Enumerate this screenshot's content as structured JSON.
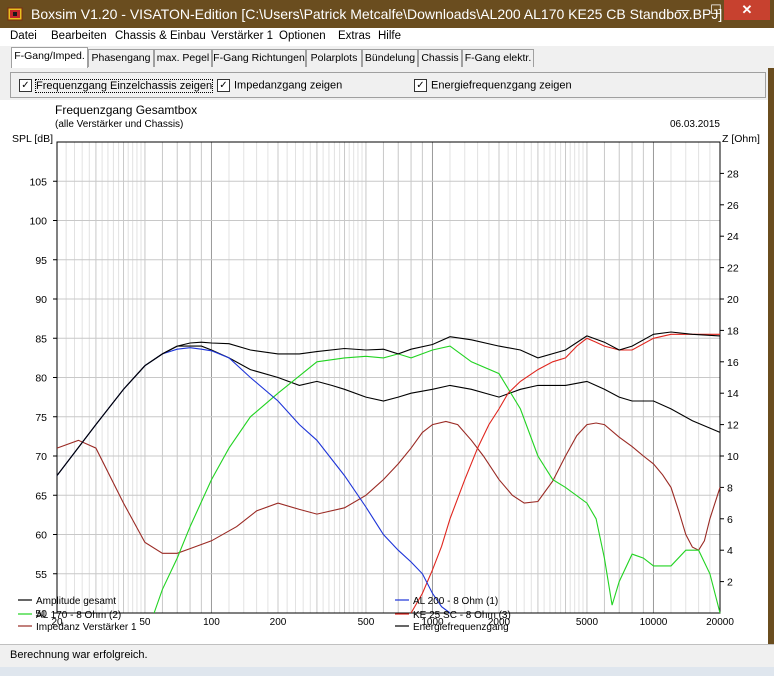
{
  "window": {
    "title": "Boxsim V1.20 - VISATON-Edition [C:\\Users\\Patrick Metcalfe\\Downloads\\AL200 AL170 KE25 CB Standbox.BPJ]",
    "minimize": "—",
    "maximize": "☐",
    "close": "✕"
  },
  "menu": [
    "Datei",
    "Bearbeiten",
    "Chassis & Einbau",
    "Verstärker 1",
    "Optionen",
    "Extras",
    "Hilfe"
  ],
  "tabs": [
    "F-Gang/Imped.",
    "Phasengang",
    "max. Pegel",
    "F-Gang Richtungen",
    "Polarplots",
    "Bündelung",
    "Chassis",
    "F-Gang elektr."
  ],
  "active_tab": "F-Gang/Imped.",
  "options": [
    {
      "label": "Frequenzgang Einzelchassis zeigen",
      "checked": true
    },
    {
      "label": "Impedanzgang zeigen",
      "checked": true
    },
    {
      "label": "Energiefrequenzgang zeigen",
      "checked": true
    }
  ],
  "status": "Berechnung war erfolgreich.",
  "chart_data": {
    "type": "line",
    "title": "Frequenzgang Gesamtbox",
    "subtitle": "(alle Verstärker und Chassis)",
    "date": "06.03.2015",
    "ylabel": "SPL [dB]",
    "y2label": "Z [Ohm]",
    "x_scale": "log",
    "xlim": [
      20,
      20000
    ],
    "ylim": [
      50,
      110
    ],
    "y2lim": [
      0,
      30
    ],
    "x_ticks": [
      20,
      50,
      100,
      200,
      500,
      1000,
      2000,
      5000,
      10000,
      20000
    ],
    "y_ticks": [
      50,
      55,
      60,
      65,
      70,
      75,
      80,
      85,
      90,
      95,
      100,
      105
    ],
    "y2_ticks": [
      2,
      4,
      6,
      8,
      10,
      12,
      14,
      16,
      18,
      20,
      22,
      24,
      26,
      28
    ],
    "grid": true,
    "series": [
      {
        "name": "Amplitude gesamt",
        "axis": "left",
        "color": "#000000",
        "x": [
          20,
          30,
          40,
          50,
          60,
          70,
          80,
          90,
          100,
          120,
          150,
          200,
          250,
          300,
          400,
          500,
          600,
          700,
          800,
          1000,
          1200,
          1500,
          2000,
          2500,
          3000,
          4000,
          5000,
          6000,
          7000,
          8000,
          10000,
          12000,
          15000,
          20000
        ],
        "y": [
          67.5,
          74,
          78.5,
          81.5,
          83,
          84,
          84.4,
          84.5,
          84.4,
          84.3,
          83.5,
          83,
          83,
          83.3,
          83.7,
          83.5,
          83.6,
          83,
          83.6,
          84.2,
          85.2,
          84.8,
          84,
          83.5,
          82.5,
          83.5,
          85.3,
          84.5,
          83.5,
          84,
          85.5,
          85.8,
          85.5,
          85.3
        ]
      },
      {
        "name": "AL 200 - 8 Ohm (1)",
        "axis": "left",
        "color": "#1d34d8",
        "x": [
          20,
          30,
          40,
          50,
          60,
          70,
          80,
          90,
          100,
          120,
          150,
          200,
          250,
          300,
          400,
          500,
          600,
          700,
          800,
          900,
          1000,
          1100,
          1200
        ],
        "y": [
          67.5,
          74,
          78.5,
          81.5,
          83,
          83.6,
          83.8,
          83.6,
          83.4,
          82.5,
          80,
          77,
          74,
          72,
          67.5,
          63.5,
          60,
          58,
          56.5,
          55,
          52.5,
          50.8,
          50
        ]
      },
      {
        "name": "AL 170 - 8 Ohm (2)",
        "axis": "left",
        "color": "#22d322",
        "x": [
          55,
          60,
          70,
          80,
          100,
          120,
          150,
          200,
          300,
          400,
          500,
          600,
          700,
          800,
          1000,
          1200,
          1500,
          2000,
          2500,
          3000,
          3500,
          4000,
          5000,
          5500,
          6000,
          6500,
          7000,
          8000,
          9000,
          10000,
          12000,
          14000,
          16000,
          18000,
          20000
        ],
        "y": [
          50,
          53,
          57,
          61,
          67,
          71,
          75,
          78,
          82,
          82.5,
          82.7,
          82.5,
          83,
          82.5,
          83.5,
          84,
          82,
          80.5,
          76,
          70,
          67,
          66,
          64,
          62,
          57,
          51,
          54,
          57.5,
          57,
          56,
          56,
          58,
          58,
          55,
          50
        ]
      },
      {
        "name": "KE 25 SC - 8 Ohm   (3)",
        "axis": "left",
        "color": "#e0261e",
        "x": [
          800,
          900,
          1000,
          1100,
          1200,
          1400,
          1600,
          1800,
          2000,
          2200,
          2500,
          3000,
          3500,
          4000,
          4500,
          5000,
          5500,
          6000,
          7000,
          8000,
          10000,
          12000,
          15000,
          20000
        ],
        "y": [
          50,
          52.5,
          55.5,
          58.5,
          62,
          67,
          71,
          74,
          76,
          78,
          79.5,
          81,
          82,
          82.5,
          84,
          85,
          84.5,
          84,
          83.5,
          83.5,
          85,
          85.5,
          85.5,
          85.5
        ]
      },
      {
        "name": "Energiefrequenzgang",
        "axis": "left",
        "color": "#000000",
        "x": [
          20,
          30,
          40,
          50,
          60,
          70,
          80,
          90,
          100,
          120,
          150,
          200,
          250,
          300,
          350,
          400,
          500,
          600,
          700,
          800,
          1000,
          1200,
          1500,
          2000,
          2500,
          3000,
          4000,
          5000,
          6000,
          7000,
          8000,
          10000,
          12000,
          15000,
          20000
        ],
        "y": [
          67.5,
          74,
          78.5,
          81.5,
          83,
          84,
          84,
          84,
          83.5,
          82.5,
          81,
          80,
          79,
          79.5,
          79,
          78.5,
          77.5,
          77,
          77.5,
          78,
          78.5,
          79,
          78.5,
          77.5,
          78.5,
          79,
          79,
          79.5,
          78.5,
          77.5,
          77,
          77,
          76,
          74.5,
          73
        ]
      },
      {
        "name": "Impedanz Verstärker 1",
        "axis": "right",
        "color": "#9a2a24",
        "x": [
          20,
          25,
          30,
          40,
          50,
          60,
          70,
          80,
          100,
          130,
          160,
          200,
          250,
          300,
          400,
          500,
          600,
          700,
          800,
          900,
          1000,
          1150,
          1300,
          1500,
          1700,
          2000,
          2300,
          2600,
          3000,
          3500,
          4000,
          4500,
          5000,
          5500,
          6000,
          7000,
          8000,
          9000,
          10000,
          11000,
          12000,
          13000,
          14000,
          15000,
          16000,
          17000,
          18000,
          20000
        ],
        "y": [
          10.5,
          11,
          10.5,
          7,
          4.5,
          3.8,
          3.8,
          4.1,
          4.6,
          5.5,
          6.5,
          7,
          6.6,
          6.3,
          6.7,
          7.5,
          8.5,
          9.5,
          10.5,
          11.5,
          12,
          12.2,
          12,
          11,
          10,
          8.5,
          7.5,
          7,
          7.1,
          8.4,
          10,
          11.3,
          12,
          12.1,
          12,
          11.2,
          10.6,
          10,
          9.5,
          8.8,
          8,
          6.5,
          5,
          4.2,
          4,
          4.6,
          6,
          8
        ]
      }
    ]
  }
}
